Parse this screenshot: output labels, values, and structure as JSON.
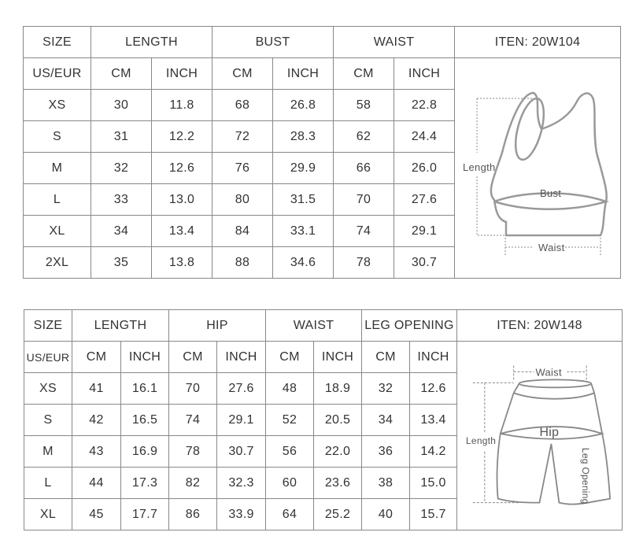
{
  "tables": [
    {
      "item": "ITEN:  20W104",
      "groups": [
        {
          "label": "SIZE",
          "span": 1
        },
        {
          "label": "LENGTH",
          "span": 2
        },
        {
          "label": "BUST",
          "span": 2
        },
        {
          "label": "WAIST",
          "span": 2
        }
      ],
      "subheaders": [
        "US/EUR",
        "CM",
        "INCH",
        "CM",
        "INCH",
        "CM",
        "INCH"
      ],
      "rows": [
        [
          "XS",
          "30",
          "11.8",
          "68",
          "26.8",
          "58",
          "22.8"
        ],
        [
          "S",
          "31",
          "12.2",
          "72",
          "28.3",
          "62",
          "24.4"
        ],
        [
          "M",
          "32",
          "12.6",
          "76",
          "29.9",
          "66",
          "26.0"
        ],
        [
          "L",
          "33",
          "13.0",
          "80",
          "31.5",
          "70",
          "27.6"
        ],
        [
          "XL",
          "34",
          "13.4",
          "84",
          "33.1",
          "74",
          "29.1"
        ],
        [
          "2XL",
          "35",
          "13.8",
          "88",
          "34.6",
          "78",
          "30.7"
        ]
      ],
      "diagram_labels": {
        "length": "Length",
        "bust": "Bust",
        "waist": "Waist"
      }
    },
    {
      "item": "ITEN:  20W148",
      "groups": [
        {
          "label": "SIZE",
          "span": 1
        },
        {
          "label": "LENGTH",
          "span": 2
        },
        {
          "label": "HIP",
          "span": 2
        },
        {
          "label": "WAIST",
          "span": 2
        },
        {
          "label": "LEG OPENING",
          "span": 2
        }
      ],
      "subheaders": [
        "US/EUR",
        "CM",
        "INCH",
        "CM",
        "INCH",
        "CM",
        "INCH",
        "CM",
        "INCH"
      ],
      "rows": [
        [
          "XS",
          "41",
          "16.1",
          "70",
          "27.6",
          "48",
          "18.9",
          "32",
          "12.6"
        ],
        [
          "S",
          "42",
          "16.5",
          "74",
          "29.1",
          "52",
          "20.5",
          "34",
          "13.4"
        ],
        [
          "M",
          "43",
          "16.9",
          "78",
          "30.7",
          "56",
          "22.0",
          "36",
          "14.2"
        ],
        [
          "L",
          "44",
          "17.3",
          "82",
          "32.3",
          "60",
          "23.6",
          "38",
          "15.0"
        ],
        [
          "XL",
          "45",
          "17.7",
          "86",
          "33.9",
          "64",
          "25.2",
          "40",
          "15.7"
        ]
      ],
      "diagram_labels": {
        "waist": "Waist",
        "hip": "Hip",
        "length": "Length",
        "leg_opening": "Leg Opening"
      }
    }
  ]
}
